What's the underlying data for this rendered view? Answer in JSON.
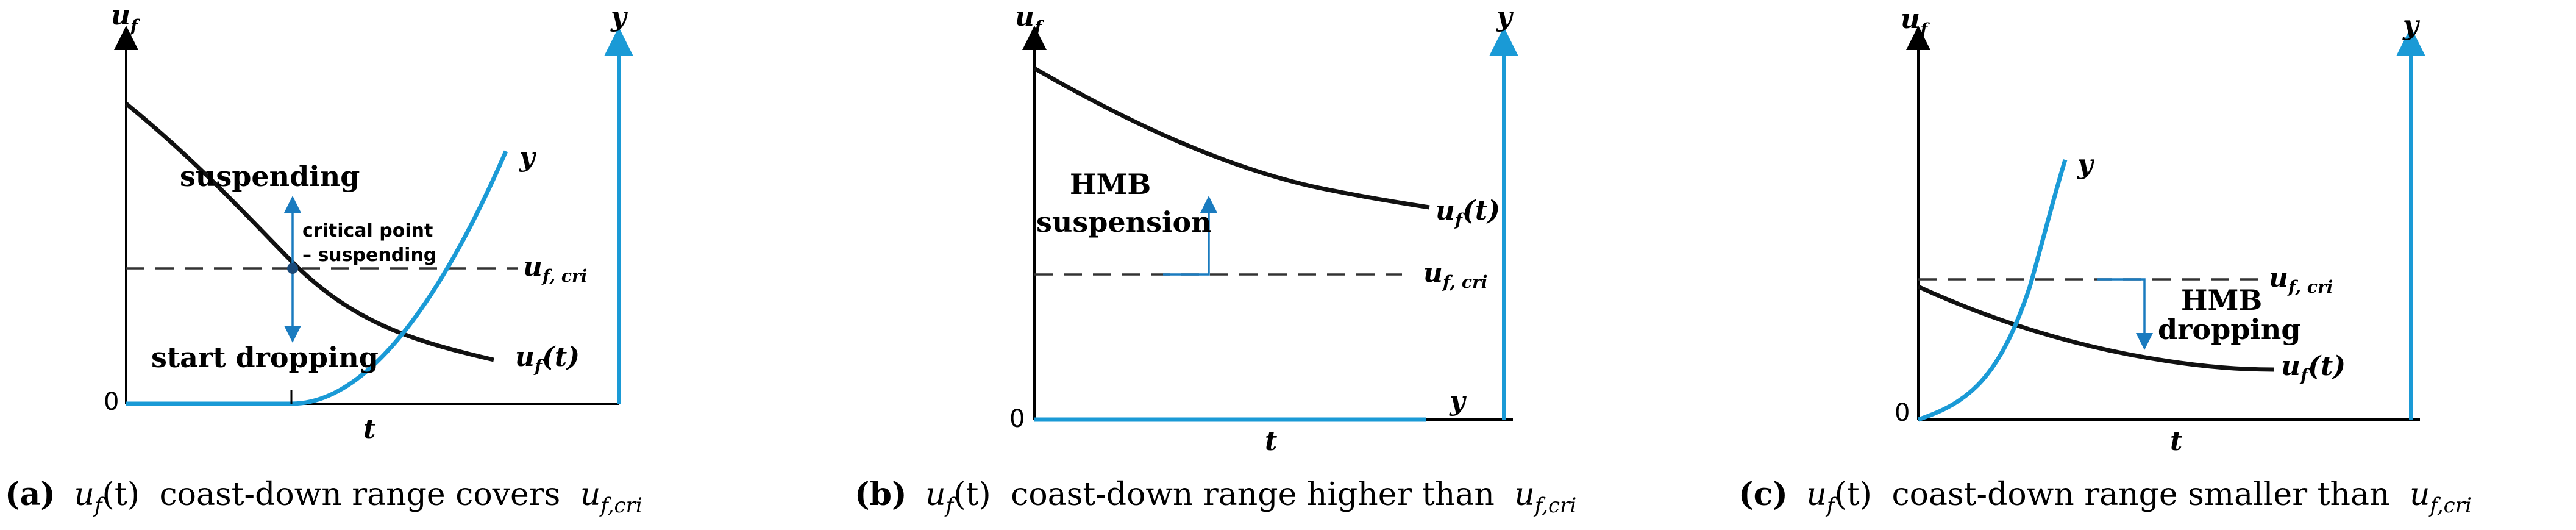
{
  "panels": [
    {
      "id": "a",
      "y_left_label": "u",
      "y_left_sub": "f",
      "y_right_label": "y",
      "x_label": "t",
      "origin": "0",
      "texts": {
        "suspending": "suspending",
        "critical1": "critical point",
        "critical2": "– suspending",
        "start_dropping": "start dropping",
        "ufcri_main": "u",
        "ufcri_sub": "f, cri",
        "uft_main": "u",
        "uft_sub": "f",
        "uft_arg": "(t)",
        "y_curve": "y"
      },
      "caption": {
        "tag": "(a)",
        "expr_main": "u",
        "expr_sub": "f",
        "expr_arg": "(t)",
        "text": "coast-down range covers",
        "cri_main": "u",
        "cri_sub": "f,cri"
      }
    },
    {
      "id": "b",
      "y_left_label": "u",
      "y_left_sub": "f",
      "y_right_label": "y",
      "x_label": "t",
      "origin": "0",
      "texts": {
        "hmb": "HMB",
        "suspension": "suspension",
        "ufcri_main": "u",
        "ufcri_sub": "f, cri",
        "uft_main": "u",
        "uft_sub": "f",
        "uft_arg": "(t)",
        "y_curve": "y"
      },
      "caption": {
        "tag": "(b)",
        "expr_main": "u",
        "expr_sub": "f",
        "expr_arg": "(t)",
        "text": "coast-down range higher than",
        "cri_main": "u",
        "cri_sub": "f,cri"
      }
    },
    {
      "id": "c",
      "y_left_label": "u",
      "y_left_sub": "f",
      "y_right_label": "y",
      "x_label": "t",
      "origin": "0",
      "texts": {
        "hmb": "HMB",
        "dropping": "dropping",
        "ufcri_main": "u",
        "ufcri_sub": "f, cri",
        "uft_main": "u",
        "uft_sub": "f",
        "uft_arg": "(t)",
        "y_curve": "y"
      },
      "caption": {
        "tag": "(c)",
        "expr_main": "u",
        "expr_sub": "f",
        "expr_arg": "(t)",
        "text": "coast-down range smaller than",
        "cri_main": "u",
        "cri_sub": "f,cri"
      }
    }
  ],
  "colors": {
    "curve_black": "#111111",
    "curve_blue": "#1a9ad6",
    "dashed": "#333333"
  }
}
